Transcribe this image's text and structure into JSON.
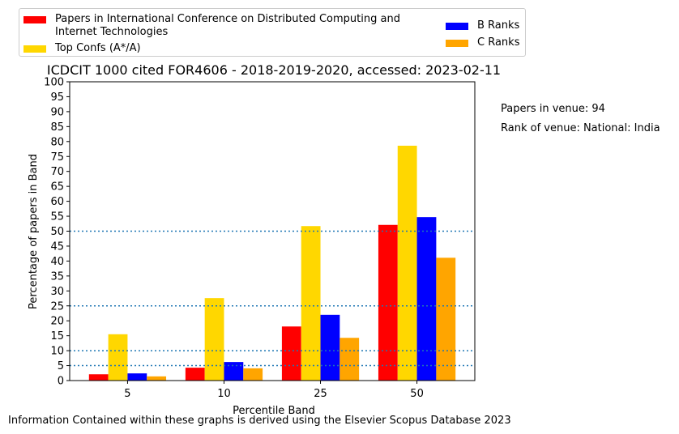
{
  "legend": [
    {
      "label": "Papers in International Conference on Distributed Computing and Internet Technologies",
      "color": "#ff0000"
    },
    {
      "label": "Top Confs (A*/A)",
      "color": "#ffd700"
    },
    {
      "label": "B Ranks",
      "color": "#0000ff"
    },
    {
      "label": "C Ranks",
      "color": "#ffa500"
    }
  ],
  "notes": {
    "papers_in_venue": "Papers in venue: 94",
    "rank_of_venue": "Rank of venue: National: India"
  },
  "footer": "Information Contained within these graphs is derived using the Elsevier Scopus Database 2023",
  "chart_data": {
    "type": "bar",
    "title": "ICDCIT 1000 cited FOR4606 - 2018-2019-2020, accessed: 2023-02-11",
    "xlabel": "Percentile Band",
    "ylabel": "Percentage of papers in Band",
    "categories": [
      "5",
      "10",
      "25",
      "50"
    ],
    "ylim": [
      0,
      100
    ],
    "yticks": [
      0,
      5,
      10,
      15,
      20,
      25,
      30,
      35,
      40,
      45,
      50,
      55,
      60,
      65,
      70,
      75,
      80,
      85,
      90,
      95,
      100
    ],
    "reference_lines": [
      5,
      10,
      25,
      50
    ],
    "series": [
      {
        "name": "Papers in International Conference on Distributed Computing and Internet Technologies",
        "color": "#ff0000",
        "values": [
          2.1,
          4.3,
          18.1,
          52.1
        ]
      },
      {
        "name": "Top Confs (A*/A)",
        "color": "#ffd700",
        "values": [
          15.5,
          27.6,
          51.7,
          78.6
        ]
      },
      {
        "name": "B Ranks",
        "color": "#0000ff",
        "values": [
          2.4,
          6.2,
          22.0,
          54.7
        ]
      },
      {
        "name": "C Ranks",
        "color": "#ffa500",
        "values": [
          1.4,
          4.1,
          14.3,
          41.1
        ]
      }
    ],
    "grid": false
  }
}
